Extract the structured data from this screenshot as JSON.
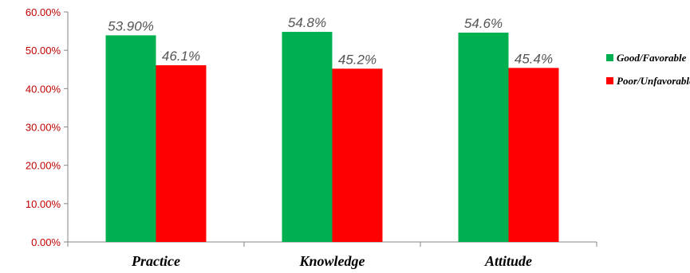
{
  "chart_data": {
    "type": "bar",
    "categories": [
      "Practice",
      "Knowledge",
      "Attitude"
    ],
    "series": [
      {
        "name": "Good/Favorable",
        "values": [
          53.9,
          54.8,
          54.6
        ],
        "labels": [
          "53.90%",
          "54.8%",
          "54.6%"
        ],
        "color": "#00b050"
      },
      {
        "name": "Poor/Unfavorable",
        "values": [
          46.1,
          45.2,
          45.4
        ],
        "labels": [
          "46.1%",
          "45.2%",
          "45.4%"
        ],
        "color": "#ff0000"
      }
    ],
    "yticks": [
      "0.00%",
      "10.00%",
      "20.00%",
      "30.00%",
      "40.00%",
      "50.00%",
      "60.00%"
    ],
    "ylim": [
      0,
      60
    ],
    "ytick_color": "#c00000",
    "axis_color": "#868686",
    "title": "",
    "xlabel": "",
    "ylabel": "",
    "legend_position": "right",
    "grid": false
  }
}
